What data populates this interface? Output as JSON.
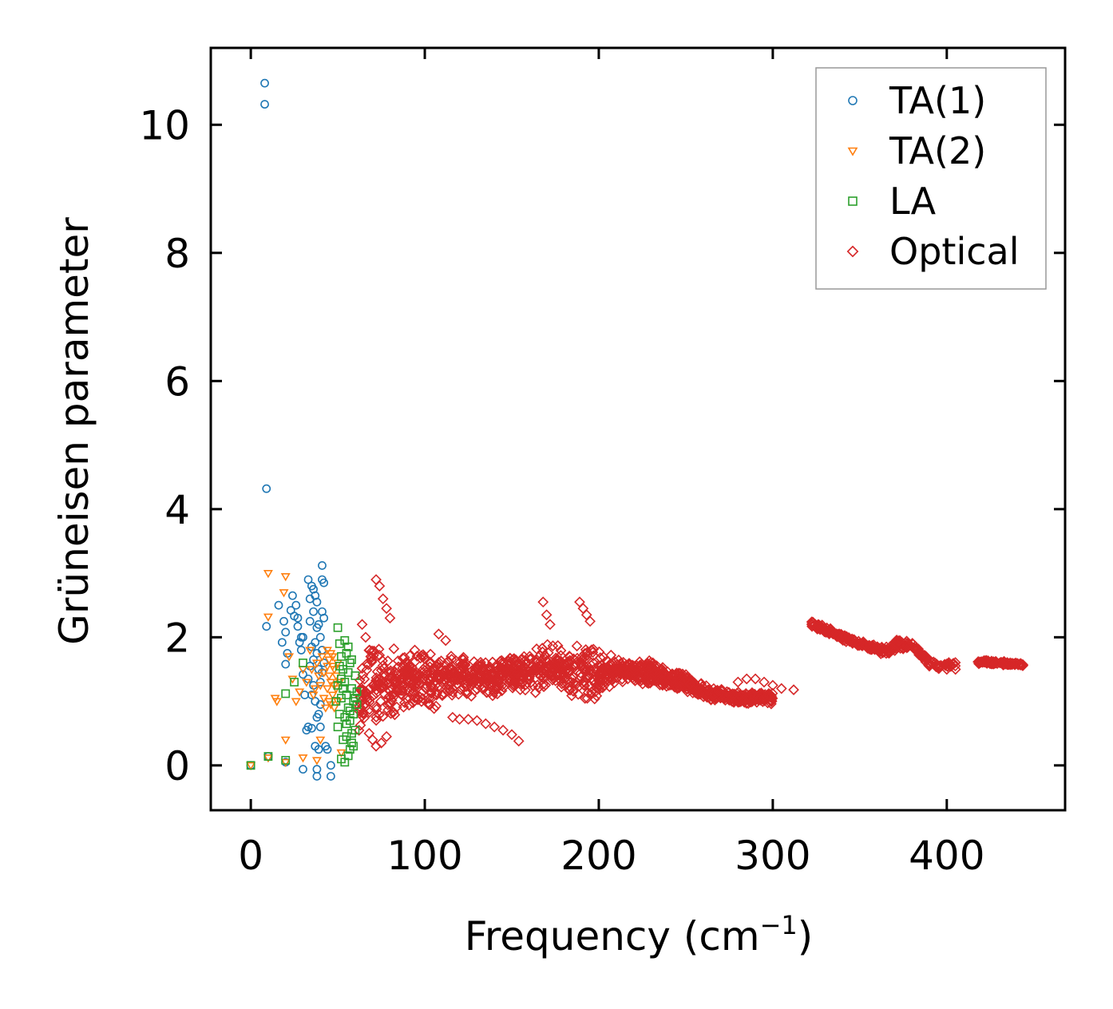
{
  "chart_data": {
    "type": "scatter",
    "title": "",
    "xlabel": "Frequency (cm",
    "xlabel_sup": "−1",
    "xlabel_close": ")",
    "ylabel": "Grüneisen parameter",
    "xlim": [
      -23,
      468
    ],
    "ylim": [
      -0.7,
      11.2
    ],
    "xticks": [
      0,
      100,
      200,
      300,
      400
    ],
    "yticks": [
      0,
      2,
      4,
      6,
      8,
      10
    ],
    "xtick_labels": [
      "0",
      "100",
      "200",
      "300",
      "400"
    ],
    "ytick_labels": [
      "0",
      "2",
      "4",
      "6",
      "8",
      "10"
    ],
    "grid": false,
    "legend_position": "top-right",
    "series": [
      {
        "name": "TA(1)",
        "marker": "circle",
        "color": "#1f77b4",
        "points": [
          [
            8,
            10.65
          ],
          [
            8,
            10.32
          ],
          [
            9,
            4.32
          ],
          [
            0,
            0.0
          ],
          [
            10,
            0.14
          ],
          [
            20,
            0.05
          ],
          [
            30,
            -0.06
          ],
          [
            38,
            -0.06
          ],
          [
            38,
            -0.17
          ],
          [
            46,
            -0.17
          ],
          [
            46,
            0.0
          ],
          [
            9,
            2.17
          ],
          [
            16,
            2.5
          ],
          [
            18,
            1.92
          ],
          [
            19,
            2.25
          ],
          [
            20,
            2.08
          ],
          [
            20,
            1.58
          ],
          [
            21,
            1.75
          ],
          [
            23,
            2.42
          ],
          [
            24,
            2.65
          ],
          [
            25,
            2.33
          ],
          [
            26,
            2.5
          ],
          [
            27,
            2.17
          ],
          [
            28,
            1.92
          ],
          [
            29,
            2.0
          ],
          [
            30,
            1.42
          ],
          [
            31,
            1.1
          ],
          [
            32,
            0.55
          ],
          [
            33,
            2.9
          ],
          [
            34,
            2.6
          ],
          [
            34,
            2.25
          ],
          [
            35,
            2.8
          ],
          [
            35,
            1.1
          ],
          [
            36,
            2.4
          ],
          [
            36,
            1.25
          ],
          [
            37,
            1.92
          ],
          [
            37,
            1.0
          ],
          [
            38,
            2.15
          ],
          [
            38,
            1.75
          ],
          [
            38,
            0.75
          ],
          [
            39,
            1.5
          ],
          [
            39,
            0.8
          ],
          [
            40,
            2.0
          ],
          [
            40,
            1.3
          ],
          [
            40,
            0.95
          ],
          [
            41,
            3.12
          ],
          [
            41,
            2.9
          ],
          [
            41,
            2.4
          ],
          [
            41,
            1.8
          ],
          [
            42,
            2.85
          ],
          [
            42,
            2.3
          ],
          [
            42,
            1.6
          ],
          [
            43,
            0.3
          ],
          [
            44,
            0.25
          ],
          [
            33,
            0.6
          ],
          [
            35,
            0.58
          ],
          [
            37,
            0.3
          ],
          [
            39,
            0.25
          ],
          [
            40,
            0.6
          ],
          [
            36,
            1.65
          ],
          [
            34,
            1.55
          ],
          [
            30,
            2.0
          ],
          [
            29,
            1.8
          ],
          [
            27,
            2.3
          ],
          [
            38,
            2.55
          ],
          [
            39,
            2.2
          ],
          [
            37,
            2.65
          ],
          [
            36,
            2.75
          ],
          [
            33,
            1.35
          ],
          [
            35,
            1.85
          ],
          [
            41,
            1.45
          ]
        ]
      },
      {
        "name": "TA(2)",
        "marker": "triangle",
        "color": "#ff7f0e",
        "points": [
          [
            0,
            0.0
          ],
          [
            10,
            0.12
          ],
          [
            20,
            0.05
          ],
          [
            30,
            0.12
          ],
          [
            38,
            0.08
          ],
          [
            40,
            0.4
          ],
          [
            20,
            0.4
          ],
          [
            10,
            3.0
          ],
          [
            10,
            2.32
          ],
          [
            19,
            2.7
          ],
          [
            20,
            2.95
          ],
          [
            14,
            1.05
          ],
          [
            15,
            1.0
          ],
          [
            22,
            1.7
          ],
          [
            24,
            1.35
          ],
          [
            26,
            1.0
          ],
          [
            28,
            1.15
          ],
          [
            30,
            1.5
          ],
          [
            32,
            1.3
          ],
          [
            34,
            1.8
          ],
          [
            36,
            1.1
          ],
          [
            38,
            1.6
          ],
          [
            40,
            1.25
          ],
          [
            42,
            1.45
          ],
          [
            44,
            1.8
          ],
          [
            45,
            1.0
          ],
          [
            46,
            1.3
          ],
          [
            47,
            1.55
          ],
          [
            48,
            0.9
          ],
          [
            49,
            1.2
          ],
          [
            50,
            1.6
          ],
          [
            43,
            0.9
          ],
          [
            41,
            1.7
          ],
          [
            39,
            1.4
          ],
          [
            37,
            1.2
          ],
          [
            35,
            1.5
          ],
          [
            45,
            1.65
          ],
          [
            47,
            1.1
          ],
          [
            49,
            1.4
          ],
          [
            44,
            1.2
          ],
          [
            46,
            1.75
          ],
          [
            48,
            1.5
          ],
          [
            50,
            1.0
          ],
          [
            42,
            1.05
          ],
          [
            44,
            1.55
          ],
          [
            46,
            0.95
          ],
          [
            48,
            1.25
          ],
          [
            45,
            1.4
          ],
          [
            47,
            1.7
          ],
          [
            51,
            1.3
          ],
          [
            52,
            0.2
          ]
        ]
      },
      {
        "name": "LA",
        "marker": "square",
        "color": "#2ca02c",
        "points": [
          [
            0,
            0.0
          ],
          [
            10,
            0.14
          ],
          [
            20,
            0.08
          ],
          [
            30,
            1.6
          ],
          [
            20,
            1.12
          ],
          [
            25,
            1.3
          ],
          [
            50,
            2.15
          ],
          [
            51,
            1.9
          ],
          [
            52,
            1.7
          ],
          [
            53,
            1.5
          ],
          [
            54,
            1.3
          ],
          [
            55,
            1.1
          ],
          [
            56,
            0.9
          ],
          [
            57,
            0.7
          ],
          [
            58,
            0.5
          ],
          [
            59,
            0.3
          ],
          [
            52,
            0.1
          ],
          [
            54,
            0.05
          ],
          [
            56,
            0.15
          ],
          [
            58,
            0.35
          ],
          [
            60,
            0.55
          ],
          [
            60,
            1.05
          ],
          [
            61,
            1.15
          ],
          [
            55,
            1.75
          ],
          [
            57,
            1.6
          ],
          [
            53,
            1.2
          ],
          [
            51,
            0.8
          ],
          [
            50,
            0.6
          ],
          [
            49,
            1.0
          ],
          [
            52,
            1.35
          ],
          [
            54,
            0.75
          ],
          [
            56,
            1.45
          ],
          [
            58,
            1.2
          ],
          [
            59,
            1.0
          ],
          [
            55,
            0.45
          ],
          [
            57,
            0.25
          ],
          [
            53,
            0.4
          ],
          [
            51,
            1.55
          ],
          [
            50,
            1.25
          ],
          [
            56,
            1.85
          ],
          [
            58,
            1.65
          ],
          [
            60,
            1.4
          ],
          [
            54,
            1.95
          ],
          [
            52,
            1.05
          ],
          [
            57,
            0.85
          ],
          [
            55,
            0.65
          ],
          [
            59,
            0.8
          ],
          [
            61,
            0.95
          ]
        ]
      },
      {
        "name": "Optical",
        "marker": "diamond",
        "color": "#d62728",
        "points": [
          [
            72,
            2.9
          ],
          [
            74,
            2.8
          ],
          [
            76,
            2.6
          ],
          [
            78,
            2.45
          ],
          [
            80,
            2.3
          ],
          [
            64,
            2.2
          ],
          [
            66,
            2.0
          ],
          [
            68,
            0.5
          ],
          [
            70,
            0.4
          ],
          [
            72,
            0.3
          ],
          [
            75,
            0.35
          ],
          [
            78,
            0.45
          ],
          [
            108,
            2.05
          ],
          [
            112,
            1.95
          ],
          [
            116,
            0.75
          ],
          [
            120,
            0.72
          ],
          [
            125,
            0.72
          ],
          [
            130,
            0.7
          ],
          [
            135,
            0.65
          ],
          [
            140,
            0.6
          ],
          [
            145,
            0.55
          ],
          [
            150,
            0.48
          ],
          [
            154,
            0.38
          ],
          [
            168,
            2.55
          ],
          [
            170,
            2.35
          ],
          [
            172,
            2.2
          ],
          [
            189,
            2.55
          ],
          [
            191,
            2.45
          ],
          [
            193,
            2.35
          ],
          [
            195,
            2.25
          ],
          [
            280,
            1.3
          ],
          [
            285,
            1.35
          ],
          [
            290,
            1.35
          ],
          [
            295,
            1.3
          ],
          [
            300,
            1.25
          ],
          [
            305,
            1.2
          ],
          [
            312,
            1.18
          ],
          [
            390,
            1.55
          ],
          [
            395,
            1.52
          ],
          [
            400,
            1.5
          ],
          [
            405,
            1.5
          ]
        ],
        "band": {
          "x": [
            62,
            70,
            80,
            90,
            100,
            110,
            120,
            130,
            140,
            150,
            160,
            170,
            180,
            190,
            200,
            210,
            220,
            230,
            240,
            250,
            260,
            270,
            280,
            290,
            300
          ],
          "center": [
            1.1,
            1.3,
            1.3,
            1.35,
            1.3,
            1.35,
            1.4,
            1.35,
            1.4,
            1.45,
            1.45,
            1.55,
            1.5,
            1.45,
            1.4,
            1.5,
            1.45,
            1.45,
            1.35,
            1.3,
            1.15,
            1.1,
            1.05,
            1.05,
            1.05
          ],
          "half_width": [
            0.6,
            0.75,
            0.65,
            0.45,
            0.55,
            0.4,
            0.35,
            0.3,
            0.35,
            0.3,
            0.4,
            0.4,
            0.35,
            0.5,
            0.45,
            0.2,
            0.2,
            0.2,
            0.15,
            0.15,
            0.12,
            0.1,
            0.1,
            0.1,
            0.1
          ],
          "count": 1400
        },
        "upper_branch": {
          "x": [
            322,
            330,
            340,
            350,
            360,
            365,
            372,
            380,
            385,
            390,
            395,
            420,
            430,
            440,
            444
          ],
          "y": [
            2.22,
            2.12,
            2.0,
            1.9,
            1.82,
            1.78,
            1.9,
            1.85,
            1.75,
            1.6,
            1.55,
            1.62,
            1.6,
            1.58,
            1.56
          ],
          "spread": [
            0.05,
            0.07,
            0.06,
            0.05,
            0.06,
            0.08,
            0.1,
            0.08,
            0.07,
            0.06,
            0.05,
            0.03,
            0.03,
            0.03,
            0.03
          ],
          "count": 420
        }
      }
    ]
  }
}
